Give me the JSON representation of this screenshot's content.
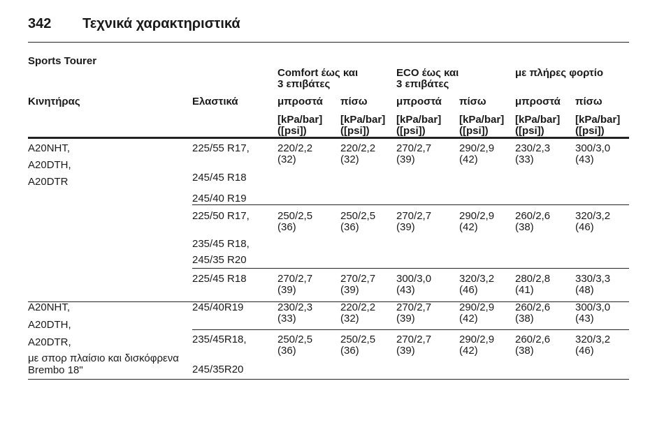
{
  "header": {
    "page_number": "342",
    "title": "Τεχνικά χαρακτηριστικά"
  },
  "section_title": "Sports Tourer",
  "table": {
    "column_groups": [
      [
        "Comfort έως και",
        "3 επιβάτες"
      ],
      [
        "ECO έως και",
        "3 επιβάτες"
      ],
      [
        "με πλήρες φορτίο"
      ]
    ],
    "columns": [
      "Κινητήρας",
      "Ελαστικά",
      "μπροστά",
      "πίσω",
      "μπροστά",
      "πίσω",
      "μπροστά",
      "πίσω"
    ],
    "units": [
      [
        "[kPa/bar]",
        "([psi])"
      ],
      [
        "[kPa/bar]",
        "([psi])"
      ],
      [
        "[kPa/bar]",
        "([psi])"
      ],
      [
        "[kPa/bar]",
        "([psi])"
      ],
      [
        "[kPa/bar]",
        "([psi])"
      ],
      [
        "[kPa/bar]",
        "([psi])"
      ]
    ],
    "groups": [
      {
        "engines": [
          "A20NHT,",
          "A20DTH,",
          "A20DTR"
        ],
        "subgroups": [
          {
            "tires": [
              "225/55 R17,",
              "245/45 R18",
              "245/40 R19"
            ],
            "values": [
              [
                "220/2,2",
                "(32)"
              ],
              [
                "220/2,2",
                "(32)"
              ],
              [
                "270/2,7",
                "(39)"
              ],
              [
                "290/2,9",
                "(42)"
              ],
              [
                "230/2,3",
                "(33)"
              ],
              [
                "300/3,0",
                "(43)"
              ]
            ]
          },
          {
            "tires": [
              "225/50 R17,",
              "235/45 R18,",
              "245/35 R20"
            ],
            "values": [
              [
                "250/2,5",
                "(36)"
              ],
              [
                "250/2,5",
                "(36)"
              ],
              [
                "270/2,7",
                "(39)"
              ],
              [
                "290/2,9",
                "(42)"
              ],
              [
                "260/2,6",
                "(38)"
              ],
              [
                "320/3,2",
                "(46)"
              ]
            ]
          },
          {
            "tires": [
              "225/45 R18"
            ],
            "values": [
              [
                "270/2,7",
                "(39)"
              ],
              [
                "270/2,7",
                "(39)"
              ],
              [
                "300/3,0",
                "(43)"
              ],
              [
                "320/3,2",
                "(46)"
              ],
              [
                "280/2,8",
                "(41)"
              ],
              [
                "330/3,3",
                "(48)"
              ]
            ]
          }
        ]
      },
      {
        "engines": [
          "A20NHT,",
          "A20DTH,",
          "A20DTR,",
          "με σπορ πλαίσιο και δισκόφρενα",
          "Brembo 18\""
        ],
        "subgroups": [
          {
            "tires": [
              "245/40R19"
            ],
            "values": [
              [
                "230/2,3",
                "(33)"
              ],
              [
                "220/2,2",
                "(32)"
              ],
              [
                "270/2,7",
                "(39)"
              ],
              [
                "290/2,9",
                "(42)"
              ],
              [
                "260/2,6",
                "(38)"
              ],
              [
                "300/3,0",
                "(43)"
              ]
            ]
          },
          {
            "tires": [
              "235/45R18,",
              "245/35R20"
            ],
            "values": [
              [
                "250/2,5",
                "(36)"
              ],
              [
                "250/2,5",
                "(36)"
              ],
              [
                "270/2,7",
                "(39)"
              ],
              [
                "290/2,9",
                "(42)"
              ],
              [
                "260/2,6",
                "(38)"
              ],
              [
                "320/3,2",
                "(46)"
              ]
            ]
          }
        ]
      }
    ]
  }
}
